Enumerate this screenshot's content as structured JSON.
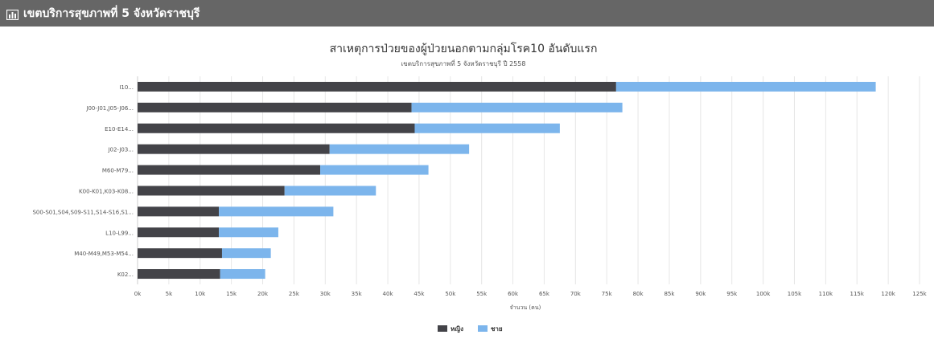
{
  "header": {
    "title": "เขตบริการสุขภาพที่ 5 จังหวัดราชบุรี",
    "icon": "bar-chart-icon"
  },
  "chart_data": {
    "type": "bar",
    "orientation": "horizontal",
    "stacked": true,
    "title": "สาเหตุการป่วยของผู้ป่วยนอกตามกลุ่มโรค10 อันดับแรก",
    "subtitle": "เขตบริการสุขภาพที่ 5 จังหวัดราชบุรี ปี 2558",
    "xlabel": "จำนวน (คน)",
    "ylabel": "",
    "xlim": [
      0,
      125000
    ],
    "grid": true,
    "legend_position": "bottom-center",
    "categories": [
      "I10...",
      "J00-J01,J05-J06...",
      "E10-E14...",
      "J02-J03...",
      "M60-M79...",
      "K00-K01,K03-K08...",
      "S00-S01,S04,S09-S11,S14-S16,S1...",
      "L10-L99...",
      "M40-M49,M53-M54...",
      "K02..."
    ],
    "x_ticks": [
      "0k",
      "5k",
      "10k",
      "15k",
      "20k",
      "25k",
      "30k",
      "35k",
      "40k",
      "45k",
      "50k",
      "55k",
      "60k",
      "65k",
      "70k",
      "75k",
      "80k",
      "85k",
      "90k",
      "95k",
      "100k",
      "105k",
      "110k",
      "115k",
      "120k",
      "125k"
    ],
    "series": [
      {
        "name": "หญิง",
        "color": "#434348",
        "values": [
          76500,
          43800,
          44300,
          30700,
          29200,
          23500,
          13000,
          13000,
          13500,
          13200
        ]
      },
      {
        "name": "ชาย",
        "color": "#7cb5ec",
        "values": [
          41500,
          33700,
          23200,
          22300,
          17300,
          14600,
          18300,
          9500,
          7800,
          7200
        ]
      }
    ]
  }
}
